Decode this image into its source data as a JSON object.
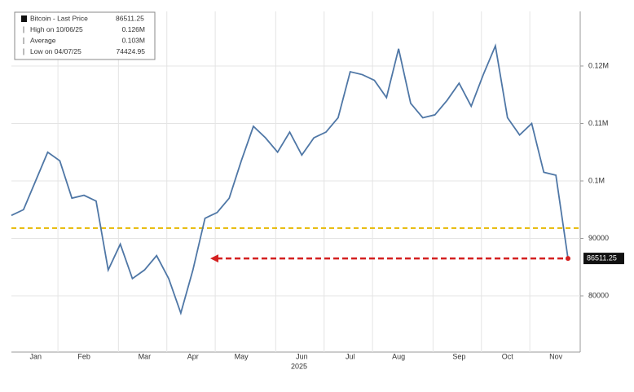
{
  "chart_data": {
    "type": "line",
    "legend_entries": [
      {
        "label": "Bitcoin - Last Price",
        "value": "86511.25"
      },
      {
        "label": "High on 10/06/25",
        "value": "0.126M"
      },
      {
        "label": "Average",
        "value": "0.103M"
      },
      {
        "label": "Low on 04/07/25",
        "value": "74424.95"
      }
    ],
    "categories": [
      null,
      null,
      "Jan",
      null,
      null,
      null,
      "Feb",
      null,
      null,
      null,
      null,
      "Mar",
      null,
      null,
      null,
      "Apr",
      null,
      null,
      null,
      "May",
      null,
      null,
      null,
      null,
      "Jun",
      null,
      null,
      null,
      "Jul",
      null,
      null,
      null,
      "Aug",
      null,
      null,
      null,
      null,
      "Sep",
      null,
      null,
      null,
      "Oct",
      null,
      null,
      null,
      "Nov",
      null
    ],
    "x_label": "2025",
    "series": [
      {
        "name": "Bitcoin",
        "color": "#4f77a6",
        "values": [
          94000,
          95000,
          100000,
          105000,
          103500,
          97000,
          97500,
          96500,
          84500,
          89000,
          83000,
          84500,
          87000,
          83000,
          77000,
          84500,
          93500,
          94500,
          97000,
          103500,
          109500,
          107500,
          105000,
          108500,
          104500,
          107500,
          108500,
          111000,
          119000,
          118500,
          117500,
          114500,
          123000,
          113500,
          111000,
          111500,
          114000,
          117000,
          113000,
          118500,
          123500,
          111000,
          108000,
          110000,
          101500,
          101000,
          86511.25
        ]
      }
    ],
    "reference_line": {
      "value": 91800,
      "color": "#e6b800"
    },
    "last_price": 86511.25,
    "last_price_color": "#d42020",
    "ylim": [
      70500,
      129500
    ],
    "yticks": [
      80000,
      90000,
      {
        "value": 100000,
        "label": "0.1M"
      },
      {
        "value": 110000,
        "label": "0.11M"
      },
      {
        "value": 120000,
        "label": "0.12M"
      }
    ],
    "grid": true
  }
}
